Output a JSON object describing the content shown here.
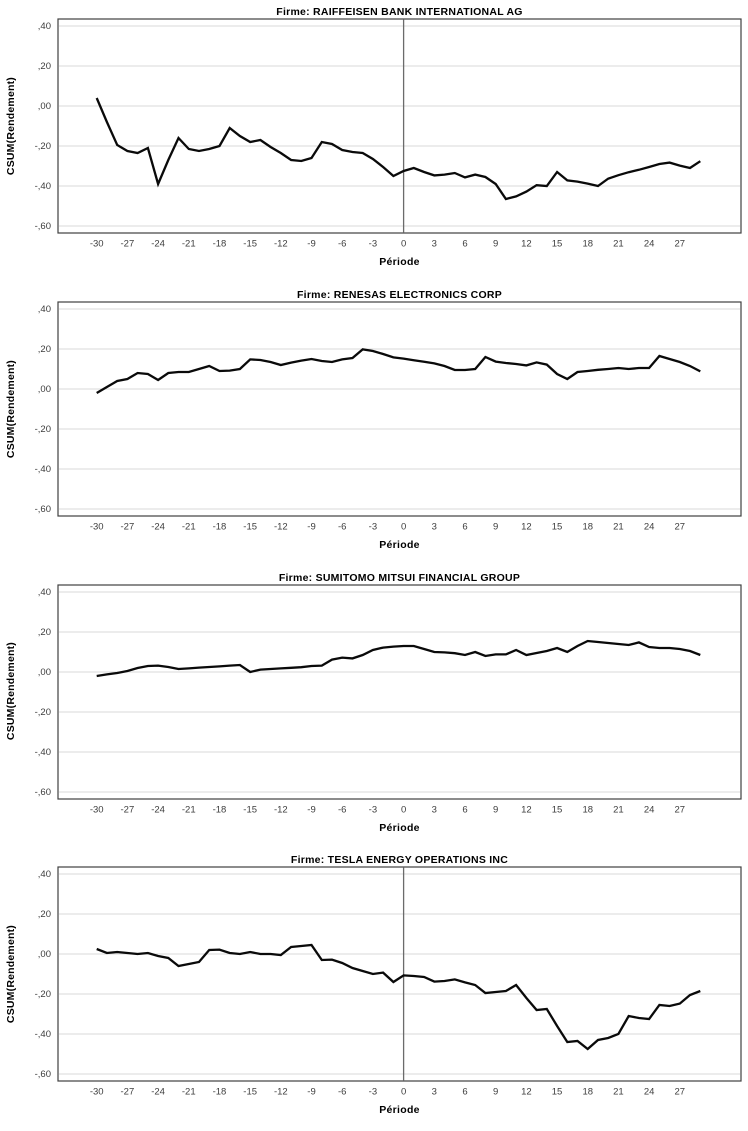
{
  "document": {
    "description": "Statistical output page with four stacked CUSUM-of-returns line charts, one per firm",
    "background_color": "#ffffff"
  },
  "style": {
    "line_color": "#0a0a0a",
    "line_width": 2.3,
    "grid_color": "#d9d9d9",
    "frame_color": "#404040",
    "reference_line_color": "#6b6b6b",
    "tick_label_color": "#3d3d3d",
    "title_color": "#000000"
  },
  "chart_data": [
    {
      "type": "line",
      "title": "Firme: RAIFFEISEN BANK INTERNATIONAL AG",
      "xlabel": "Période",
      "ylabel": "CSUM(Rendement)",
      "x_start": -30,
      "x_step": 1,
      "x_end": 29,
      "ylim": [
        -0.6,
        0.4
      ],
      "ytick_labels": [
        ",40",
        ",20",
        ",00",
        "-,20",
        "-,40",
        "-,60"
      ],
      "ytick_values": [
        0.4,
        0.2,
        0,
        -0.2,
        -0.4,
        -0.6
      ],
      "xtick_values": [
        -30,
        -27,
        -24,
        -21,
        -18,
        -15,
        -12,
        -9,
        -6,
        -3,
        0,
        3,
        6,
        9,
        12,
        15,
        18,
        21,
        24,
        27
      ],
      "reference_line_x": 0,
      "grid": "horizontal",
      "legend": "none",
      "values": [
        0.04,
        -0.08,
        -0.195,
        -0.225,
        -0.235,
        -0.21,
        -0.39,
        -0.27,
        -0.16,
        -0.215,
        -0.225,
        -0.215,
        -0.2,
        -0.11,
        -0.15,
        -0.18,
        -0.17,
        -0.205,
        -0.235,
        -0.27,
        -0.275,
        -0.26,
        -0.18,
        -0.19,
        -0.22,
        -0.23,
        -0.235,
        -0.265,
        -0.305,
        -0.35,
        -0.325,
        -0.31,
        -0.33,
        -0.347,
        -0.343,
        -0.335,
        -0.357,
        -0.343,
        -0.355,
        -0.39,
        -0.465,
        -0.452,
        -0.428,
        -0.396,
        -0.4,
        -0.33,
        -0.372,
        -0.378,
        -0.388,
        -0.4,
        -0.363,
        -0.346,
        -0.331,
        -0.319,
        -0.305,
        -0.29,
        -0.283,
        -0.298,
        -0.31,
        -0.276
      ]
    },
    {
      "type": "line",
      "title": "Firme: RENESAS ELECTRONICS CORP",
      "xlabel": "Période",
      "ylabel": "CSUM(Rendement)",
      "x_start": -30,
      "x_step": 1,
      "x_end": 29,
      "ylim": [
        -0.6,
        0.4
      ],
      "ytick_labels": [
        ",40",
        ",20",
        ",00",
        "-,20",
        "-,40",
        "-,60"
      ],
      "ytick_values": [
        0.4,
        0.2,
        0,
        -0.2,
        -0.4,
        -0.6
      ],
      "xtick_values": [
        -30,
        -27,
        -24,
        -21,
        -18,
        -15,
        -12,
        -9,
        -6,
        -3,
        0,
        3,
        6,
        9,
        12,
        15,
        18,
        21,
        24,
        27
      ],
      "reference_line_x": null,
      "grid": "horizontal",
      "legend": "none",
      "values": [
        -0.02,
        0.01,
        0.04,
        0.05,
        0.08,
        0.075,
        0.045,
        0.08,
        0.085,
        0.085,
        0.1,
        0.115,
        0.09,
        0.092,
        0.1,
        0.148,
        0.145,
        0.135,
        0.12,
        0.132,
        0.142,
        0.15,
        0.14,
        0.135,
        0.148,
        0.155,
        0.198,
        0.19,
        0.175,
        0.158,
        0.152,
        0.144,
        0.136,
        0.128,
        0.115,
        0.095,
        0.095,
        0.1,
        0.16,
        0.137,
        0.13,
        0.125,
        0.118,
        0.133,
        0.122,
        0.075,
        0.05,
        0.085,
        0.09,
        0.096,
        0.1,
        0.105,
        0.1,
        0.105,
        0.105,
        0.165,
        0.15,
        0.135,
        0.115,
        0.088
      ]
    },
    {
      "type": "line",
      "title": "Firme: SUMITOMO MITSUI FINANCIAL GROUP",
      "xlabel": "Période",
      "ylabel": "CSUM(Rendement)",
      "x_start": -30,
      "x_step": 1,
      "x_end": 29,
      "ylim": [
        -0.6,
        0.4
      ],
      "ytick_labels": [
        ",40",
        ",20",
        ",00",
        "-,20",
        "-,40",
        "-,60"
      ],
      "ytick_values": [
        0.4,
        0.2,
        0,
        -0.2,
        -0.4,
        -0.6
      ],
      "xtick_values": [
        -30,
        -27,
        -24,
        -21,
        -18,
        -15,
        -12,
        -9,
        -6,
        -3,
        0,
        3,
        6,
        9,
        12,
        15,
        18,
        21,
        24,
        27
      ],
      "reference_line_x": null,
      "grid": "horizontal",
      "legend": "none",
      "values": [
        -0.02,
        -0.012,
        -0.005,
        0.005,
        0.02,
        0.03,
        0.032,
        0.025,
        0.015,
        0.018,
        0.022,
        0.025,
        0.028,
        0.032,
        0.035,
        0.0,
        0.012,
        0.015,
        0.018,
        0.021,
        0.024,
        0.03,
        0.032,
        0.062,
        0.072,
        0.068,
        0.085,
        0.11,
        0.122,
        0.127,
        0.13,
        0.13,
        0.115,
        0.1,
        0.098,
        0.094,
        0.085,
        0.1,
        0.08,
        0.088,
        0.088,
        0.11,
        0.085,
        0.095,
        0.105,
        0.12,
        0.1,
        0.13,
        0.155,
        0.15,
        0.145,
        0.14,
        0.135,
        0.148,
        0.125,
        0.12,
        0.12,
        0.115,
        0.105,
        0.085
      ]
    },
    {
      "type": "line",
      "title": "Firme: TESLA ENERGY OPERATIONS INC",
      "xlabel": "Période",
      "ylabel": "CSUM(Rendement)",
      "x_start": -30,
      "x_step": 1,
      "x_end": 29,
      "ylim": [
        -0.6,
        0.4
      ],
      "ytick_labels": [
        ",40",
        ",20",
        ",00",
        "-,20",
        "-,40",
        "-,60"
      ],
      "ytick_values": [
        0.4,
        0.2,
        0,
        -0.2,
        -0.4,
        -0.6
      ],
      "xtick_values": [
        -30,
        -27,
        -24,
        -21,
        -18,
        -15,
        -12,
        -9,
        -6,
        -3,
        0,
        3,
        6,
        9,
        12,
        15,
        18,
        21,
        24,
        27
      ],
      "reference_line_x": 0,
      "grid": "horizontal",
      "legend": "none",
      "values": [
        0.025,
        0.005,
        0.01,
        0.005,
        0.0,
        0.005,
        -0.01,
        -0.02,
        -0.06,
        -0.05,
        -0.04,
        0.02,
        0.022,
        0.005,
        0.0,
        0.01,
        0.0,
        0.0,
        -0.005,
        0.035,
        0.04,
        0.045,
        -0.03,
        -0.028,
        -0.045,
        -0.07,
        -0.085,
        -0.1,
        -0.093,
        -0.14,
        -0.107,
        -0.11,
        -0.115,
        -0.138,
        -0.135,
        -0.127,
        -0.142,
        -0.155,
        -0.195,
        -0.19,
        -0.185,
        -0.155,
        -0.22,
        -0.28,
        -0.275,
        -0.36,
        -0.44,
        -0.435,
        -0.475,
        -0.43,
        -0.42,
        -0.4,
        -0.31,
        -0.32,
        -0.325,
        -0.255,
        -0.26,
        -0.248,
        -0.205,
        -0.185
      ]
    }
  ]
}
